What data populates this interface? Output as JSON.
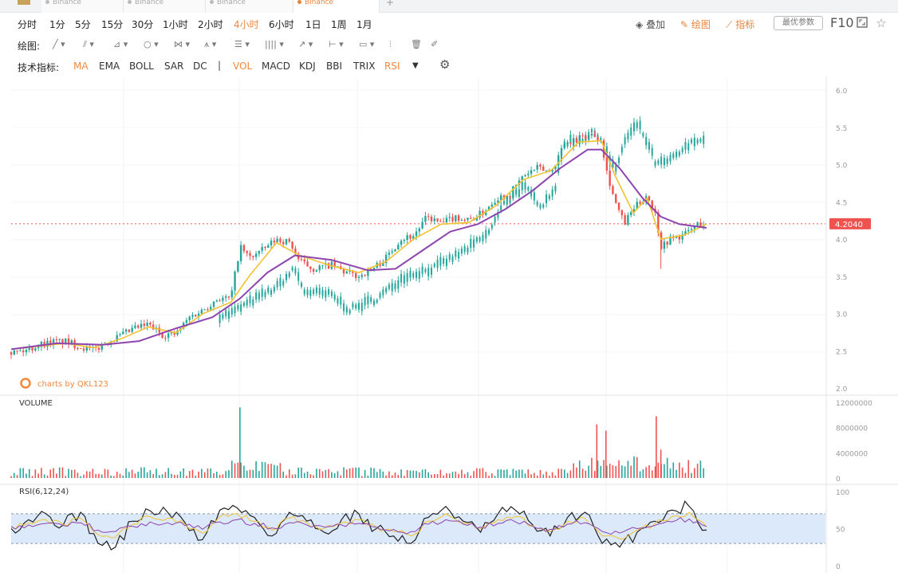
{
  "tabs": [
    {
      "label": "Binance"
    },
    {
      "label": "Binance"
    },
    {
      "label": "Binance"
    },
    {
      "label": "Binance"
    }
  ],
  "periods": [
    "分时",
    "1分",
    "5分",
    "15分",
    "30分",
    "1小时",
    "2小时",
    "4小时",
    "6小时",
    "1日",
    "1周",
    "1月"
  ],
  "active_period": "4小时",
  "right_tools": {
    "overlay": "叠加",
    "draw": "绘图",
    "indicator": "指标",
    "best_params": "最优参数",
    "f10": "F10"
  },
  "draw_label": "绘图:",
  "indicators_label": "技术指标:",
  "indicators": [
    "MA",
    "EMA",
    "BOLL",
    "SAR",
    "DC",
    "|",
    "VOL",
    "MACD",
    "KDJ",
    "BBI",
    "TRIX",
    "RSI"
  ],
  "indicators_active": [
    "MA",
    "VOL",
    "RSI"
  ],
  "icons": {
    "draw_tools": [
      "line-icon",
      "ray-icon",
      "trend-icon",
      "circle-icon",
      "zigzag-icon",
      "pattern-icon",
      "fib-icon",
      "channel-icon",
      "arrow-icon",
      "range-icon",
      "note-icon",
      "signal-icon",
      "trash-icon",
      "eraser-icon"
    ],
    "settings": "gear-icon",
    "fullscreen": "fullscreen-icon",
    "favorite": "star-icon"
  },
  "watermark": "charts by QKL123",
  "colors": {
    "up": "#26a69a",
    "down": "#ef5350",
    "ma_fast": "#f2c230",
    "ma_slow": "#8e44ad",
    "compare": "#26a69a",
    "price_tag": "#ef5350",
    "accent": "#f0883e",
    "rsi_band": "#dbe9fb"
  },
  "chart_data": [
    {
      "type": "candlestick",
      "title": "",
      "current_price": 4.204,
      "current_price_label": "4.2040",
      "ylim": [
        2.0,
        6.0
      ],
      "yticks": [
        "6.0",
        "5.5",
        "5.0",
        "4.5",
        "4.0",
        "3.5",
        "3.0",
        "2.5",
        "2.0"
      ],
      "close_path": [
        [
          0,
          2.48
        ],
        [
          3,
          2.5
        ],
        [
          6,
          2.58
        ],
        [
          9,
          2.62
        ],
        [
          12,
          2.62
        ],
        [
          15,
          2.56
        ],
        [
          18,
          2.5
        ],
        [
          21,
          2.62
        ],
        [
          24,
          2.7
        ],
        [
          27,
          2.8
        ],
        [
          30,
          2.85
        ],
        [
          33,
          2.72
        ],
        [
          36,
          2.72
        ],
        [
          39,
          2.95
        ],
        [
          42,
          3.05
        ],
        [
          45,
          3.2
        ],
        [
          48,
          3.2
        ],
        [
          50,
          3.9
        ],
        [
          52,
          3.75
        ],
        [
          55,
          3.85
        ],
        [
          58,
          4.0
        ],
        [
          61,
          3.95
        ],
        [
          63,
          3.7
        ],
        [
          66,
          3.6
        ],
        [
          70,
          3.65
        ],
        [
          73,
          3.55
        ],
        [
          76,
          3.5
        ],
        [
          79,
          3.6
        ],
        [
          82,
          3.75
        ],
        [
          85,
          4.0
        ],
        [
          88,
          4.05
        ],
        [
          91,
          4.3
        ],
        [
          94,
          4.2
        ],
        [
          97,
          4.3
        ],
        [
          100,
          4.25
        ],
        [
          103,
          4.35
        ],
        [
          106,
          4.55
        ],
        [
          109,
          4.6
        ],
        [
          112,
          4.85
        ],
        [
          115,
          4.95
        ],
        [
          118,
          4.9
        ],
        [
          121,
          5.3
        ],
        [
          124,
          5.35
        ],
        [
          127,
          5.4
        ],
        [
          129,
          5.35
        ],
        [
          130,
          4.95
        ],
        [
          132,
          4.5
        ],
        [
          134,
          4.2
        ],
        [
          136,
          4.4
        ],
        [
          139,
          4.6
        ],
        [
          141,
          4.3
        ],
        [
          142,
          3.9
        ],
        [
          144,
          4.0
        ],
        [
          147,
          4.05
        ],
        [
          150,
          4.2
        ],
        [
          152,
          4.2
        ]
      ],
      "ma_fast_path": [
        [
          0,
          2.52
        ],
        [
          6,
          2.56
        ],
        [
          12,
          2.6
        ],
        [
          18,
          2.54
        ],
        [
          24,
          2.66
        ],
        [
          30,
          2.82
        ],
        [
          36,
          2.74
        ],
        [
          42,
          3.0
        ],
        [
          48,
          3.15
        ],
        [
          52,
          3.5
        ],
        [
          58,
          3.95
        ],
        [
          63,
          3.78
        ],
        [
          70,
          3.64
        ],
        [
          76,
          3.55
        ],
        [
          82,
          3.7
        ],
        [
          88,
          4.0
        ],
        [
          94,
          4.2
        ],
        [
          100,
          4.22
        ],
        [
          106,
          4.45
        ],
        [
          112,
          4.8
        ],
        [
          118,
          4.92
        ],
        [
          124,
          5.3
        ],
        [
          129,
          5.32
        ],
        [
          132,
          4.85
        ],
        [
          136,
          4.35
        ],
        [
          139,
          4.55
        ],
        [
          142,
          4.0
        ],
        [
          147,
          4.05
        ],
        [
          152,
          4.2
        ]
      ],
      "ma_slow_path": [
        [
          0,
          2.52
        ],
        [
          10,
          2.6
        ],
        [
          20,
          2.58
        ],
        [
          28,
          2.63
        ],
        [
          36,
          2.8
        ],
        [
          44,
          2.95
        ],
        [
          50,
          3.2
        ],
        [
          56,
          3.55
        ],
        [
          62,
          3.78
        ],
        [
          70,
          3.72
        ],
        [
          78,
          3.58
        ],
        [
          84,
          3.6
        ],
        [
          90,
          3.85
        ],
        [
          96,
          4.1
        ],
        [
          102,
          4.2
        ],
        [
          108,
          4.4
        ],
        [
          114,
          4.65
        ],
        [
          120,
          4.95
        ],
        [
          126,
          5.2
        ],
        [
          129,
          5.2
        ],
        [
          133,
          4.95
        ],
        [
          138,
          4.55
        ],
        [
          142,
          4.3
        ],
        [
          146,
          4.2
        ],
        [
          152,
          4.15
        ]
      ],
      "compare_path": [
        [
          0,
          2.48
        ],
        [
          10,
          2.55
        ],
        [
          20,
          2.6
        ],
        [
          30,
          2.7
        ],
        [
          40,
          2.9
        ],
        [
          48,
          3.0
        ],
        [
          52,
          3.15
        ],
        [
          58,
          3.35
        ],
        [
          62,
          3.6
        ],
        [
          64,
          3.3
        ],
        [
          70,
          3.25
        ],
        [
          74,
          3.05
        ],
        [
          80,
          3.2
        ],
        [
          86,
          3.5
        ],
        [
          92,
          3.6
        ],
        [
          98,
          3.8
        ],
        [
          104,
          4.05
        ],
        [
          108,
          4.5
        ],
        [
          112,
          4.7
        ],
        [
          116,
          4.45
        ],
        [
          119,
          4.7
        ],
        [
          121,
          5.3
        ],
        [
          125,
          5.35
        ],
        [
          128,
          5.45
        ],
        [
          130,
          5.2
        ],
        [
          132,
          4.9
        ],
        [
          134,
          5.3
        ],
        [
          137,
          5.55
        ],
        [
          139,
          5.3
        ],
        [
          141,
          5.0
        ],
        [
          144,
          5.05
        ],
        [
          147,
          5.2
        ],
        [
          150,
          5.35
        ],
        [
          152,
          5.3
        ]
      ]
    },
    {
      "type": "bar",
      "title": "VOLUME",
      "ylim": [
        0,
        12000000
      ],
      "yticks": [
        "12000000",
        "8000000",
        "4000000",
        "0"
      ],
      "spikes": [
        {
          "x": 50,
          "value": 11200000
        },
        {
          "x": 128,
          "value": 8500000
        },
        {
          "x": 130,
          "value": 7500000
        },
        {
          "x": 141,
          "value": 9800000
        },
        {
          "x": 142,
          "value": 4500000
        }
      ]
    },
    {
      "type": "line",
      "title": "RSI(6,12,24)",
      "ylim": [
        0,
        100
      ],
      "yticks": [
        "100",
        "50",
        "0"
      ],
      "band": [
        30,
        70
      ],
      "series": [
        {
          "values": [
            50,
            62,
            70,
            55,
            72,
            30,
            25,
            60,
            74,
            72,
            58,
            35,
            75,
            78,
            65,
            40,
            72,
            60,
            45,
            62,
            70,
            50,
            40,
            30,
            65,
            80,
            60,
            45,
            70,
            75,
            55,
            40,
            65,
            72,
            30,
            25,
            45,
            60,
            75,
            80,
            48
          ]
        },
        {
          "values": [
            52,
            58,
            62,
            55,
            64,
            42,
            38,
            56,
            66,
            64,
            56,
            44,
            66,
            70,
            60,
            48,
            64,
            58,
            50,
            58,
            62,
            52,
            46,
            40,
            60,
            70,
            58,
            50,
            62,
            66,
            54,
            46,
            60,
            64,
            40,
            36,
            48,
            56,
            66,
            72,
            52
          ]
        },
        {
          "values": [
            53,
            55,
            57,
            54,
            58,
            48,
            46,
            53,
            59,
            58,
            54,
            49,
            59,
            62,
            57,
            51,
            58,
            55,
            52,
            55,
            57,
            52,
            49,
            46,
            56,
            62,
            56,
            52,
            57,
            59,
            53,
            49,
            56,
            58,
            46,
            44,
            50,
            54,
            59,
            63,
            53
          ]
        }
      ]
    }
  ]
}
